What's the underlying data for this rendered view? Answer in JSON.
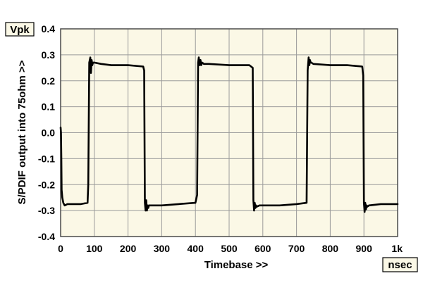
{
  "chart_data": {
    "type": "line",
    "xlabel": "Timebase >>",
    "ylabel": "S/PDIF output into 75ohm >>",
    "y_unit": "Vpk",
    "x_unit": "nsec",
    "xlim": [
      0,
      1000
    ],
    "ylim": [
      -0.4,
      0.4
    ],
    "x_ticks": [
      "0",
      "100",
      "200",
      "300",
      "400",
      "500",
      "600",
      "700",
      "800",
      "900",
      "1k"
    ],
    "y_ticks": [
      "0.4",
      "0.3",
      "0.2",
      "0.1",
      "0.0",
      "-0.1",
      "-0.2",
      "-0.3",
      "-0.4"
    ],
    "grid": true,
    "background": "#fbf8e6",
    "series": [
      {
        "color": "#000000",
        "x": [
          0,
          1,
          2,
          3,
          5,
          8,
          12,
          20,
          40,
          60,
          80,
          82,
          85,
          88,
          90,
          92,
          94,
          96,
          100,
          120,
          150,
          200,
          245,
          248,
          250,
          252,
          254,
          256,
          258,
          260,
          262,
          270,
          300,
          350,
          400,
          405,
          408,
          410,
          412,
          415,
          417,
          420,
          425,
          440,
          500,
          560,
          570,
          572,
          574,
          576,
          578,
          580,
          582,
          590,
          650,
          700,
          730,
          733,
          736,
          738,
          740,
          742,
          744,
          750,
          800,
          850,
          895,
          898,
          900,
          902,
          904,
          906,
          908,
          910,
          915,
          950,
          1000
        ],
        "y": [
          0.02,
          0.0,
          -0.1,
          -0.22,
          -0.25,
          -0.27,
          -0.28,
          -0.275,
          -0.275,
          -0.275,
          -0.27,
          -0.2,
          0.27,
          0.29,
          0.23,
          0.28,
          0.26,
          0.27,
          0.27,
          0.265,
          0.26,
          0.26,
          0.255,
          0.24,
          -0.27,
          -0.3,
          -0.26,
          -0.3,
          -0.28,
          -0.29,
          -0.28,
          -0.28,
          -0.28,
          -0.275,
          -0.27,
          -0.24,
          0.27,
          0.29,
          0.26,
          0.28,
          0.26,
          0.27,
          0.265,
          0.265,
          0.26,
          0.26,
          0.25,
          -0.26,
          -0.3,
          -0.27,
          -0.29,
          -0.28,
          -0.285,
          -0.28,
          -0.28,
          -0.275,
          -0.27,
          0.24,
          0.29,
          0.26,
          0.28,
          0.27,
          0.27,
          0.265,
          0.26,
          0.26,
          0.255,
          0.22,
          -0.27,
          -0.305,
          -0.27,
          -0.295,
          -0.28,
          -0.285,
          -0.28,
          -0.275,
          -0.275
        ]
      }
    ]
  }
}
